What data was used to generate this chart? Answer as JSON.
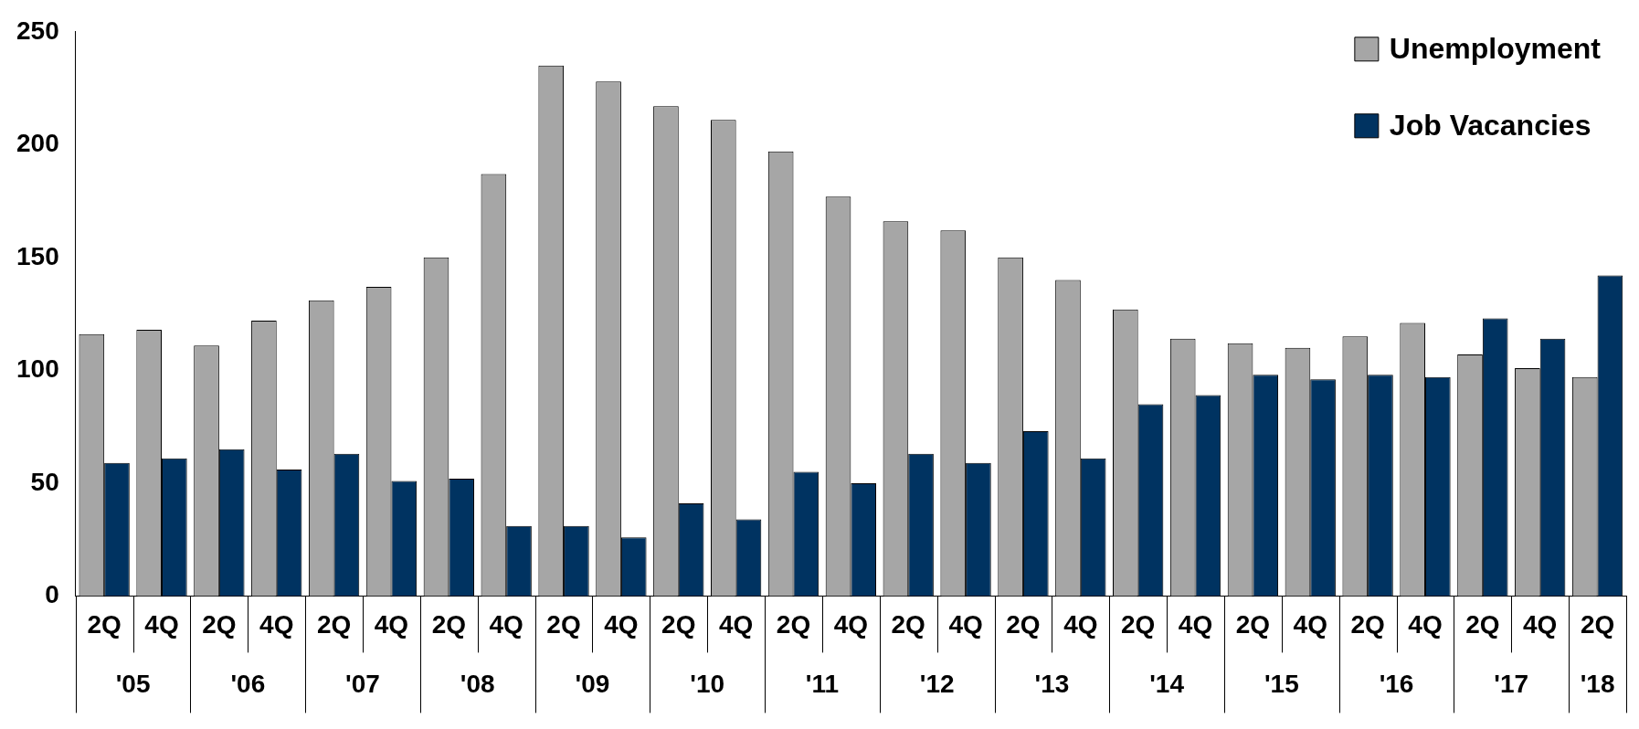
{
  "chart_data": {
    "type": "bar",
    "categories": [
      "2Q",
      "4Q",
      "2Q",
      "4Q",
      "2Q",
      "4Q",
      "2Q",
      "4Q",
      "2Q",
      "4Q",
      "2Q",
      "4Q",
      "2Q",
      "4Q",
      "2Q",
      "4Q",
      "2Q",
      "4Q",
      "2Q",
      "4Q",
      "2Q",
      "4Q",
      "2Q",
      "4Q",
      "2Q",
      "4Q",
      "2Q"
    ],
    "annotations": [
      "'05",
      "'06",
      "'07",
      "'08",
      "'09",
      "'10",
      "'11",
      "'12",
      "'13",
      "'14",
      "'15",
      "'16",
      "'17",
      "'18"
    ],
    "series": [
      {
        "name": "Unemployment",
        "color": "#a6a6a6",
        "values": [
          116,
          118,
          111,
          122,
          131,
          137,
          150,
          187,
          235,
          228,
          217,
          211,
          197,
          177,
          166,
          162,
          150,
          140,
          127,
          114,
          112,
          110,
          115,
          121,
          107,
          101,
          97
        ]
      },
      {
        "name": "Job Vacancies",
        "color": "#003361",
        "values": [
          59,
          61,
          65,
          56,
          63,
          51,
          52,
          31,
          31,
          26,
          41,
          34,
          55,
          50,
          63,
          59,
          73,
          61,
          85,
          89,
          98,
          96,
          98,
          97,
          123,
          114,
          142
        ]
      }
    ],
    "ylim": [
      0,
      250
    ],
    "yticks": [
      0,
      50,
      100,
      150,
      200,
      250
    ],
    "grid": false,
    "legend": "top right"
  }
}
